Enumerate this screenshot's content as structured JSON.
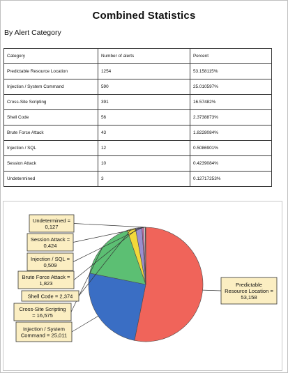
{
  "report": {
    "title": "Combined Statistics",
    "subtitle": "By Alert Category"
  },
  "table": {
    "headers": [
      "Category",
      "Number of alerts",
      "Percent"
    ],
    "rows": [
      [
        "Predictable Resource Location",
        "1254",
        "53.158115%"
      ],
      [
        "Injection / System Command",
        "590",
        "25.010597%"
      ],
      [
        "Cross-Site Scripting",
        "391",
        "16.57482%"
      ],
      [
        "Shell Code",
        "56",
        "2.3738873%"
      ],
      [
        "Brute Force Attack",
        "43",
        "1.8228084%"
      ],
      [
        "Injection / SQL",
        "12",
        "0.5086901%"
      ],
      [
        "Session Attack",
        "10",
        "0.4239084%"
      ],
      [
        "Undetermined",
        "3",
        "0.12717253%"
      ]
    ]
  },
  "chart_data": {
    "type": "pie",
    "categories": [
      "Predictable Resource Location",
      "Injection / System Command",
      "Cross-Site Scripting",
      "Shell Code",
      "Brute Force Attack",
      "Injection / SQL",
      "Session Attack",
      "Undetermined"
    ],
    "values": [
      53.158,
      25.011,
      16.575,
      2.374,
      1.823,
      0.509,
      0.424,
      0.127
    ],
    "colors": [
      "#f0645a",
      "#3a6ec4",
      "#5cbf73",
      "#f2d83a",
      "#9a8fcf",
      "#c86fa8",
      "#d7d7d7",
      "#7a9acb"
    ],
    "labels": [
      [
        "Predictable",
        "Resource Location =",
        "53,158"
      ],
      [
        "Injection / System",
        "Command = 25,011"
      ],
      [
        "Cross-Site Scripting",
        "= 16,575"
      ],
      [
        "Shell Code = 2,374"
      ],
      [
        "Brute Force Attack =",
        "1,823"
      ],
      [
        "Injection / SQL =",
        "0,509"
      ],
      [
        "Session Attack =",
        "0,424"
      ],
      [
        "Undetermined =",
        "0,127"
      ]
    ]
  }
}
